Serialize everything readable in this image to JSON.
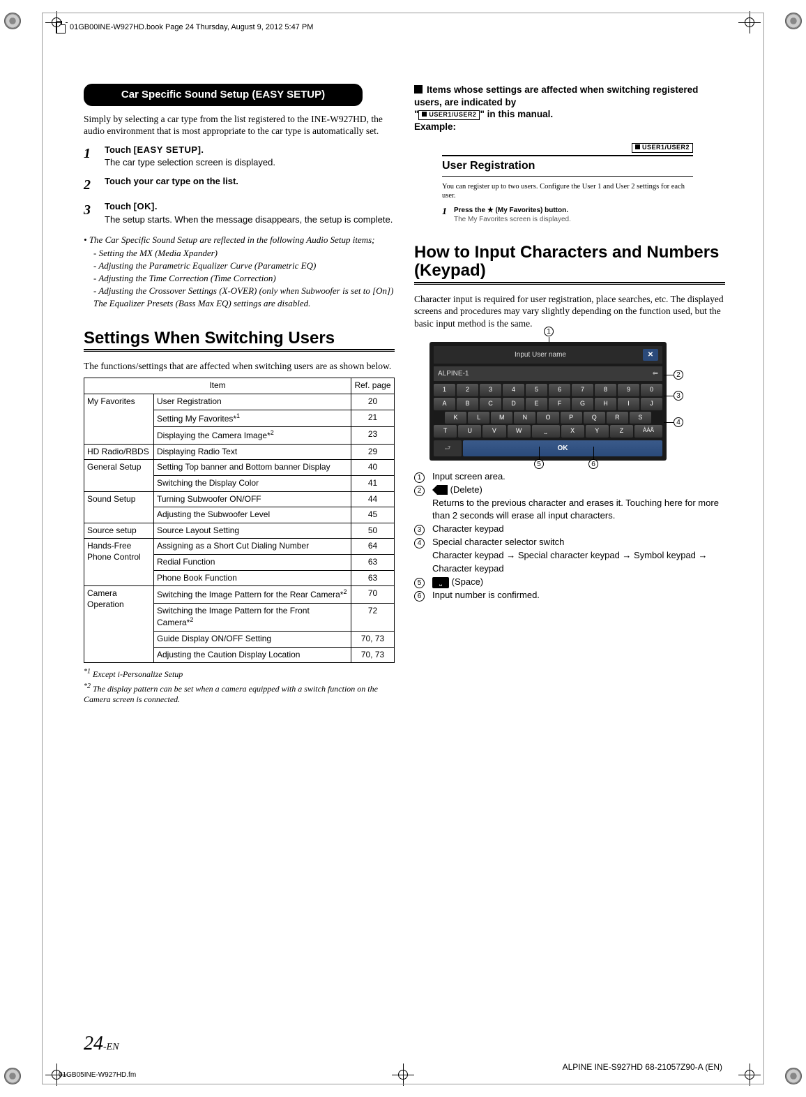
{
  "header": {
    "book_info": "01GB00INE-W927HD.book  Page 24  Thursday, August 9, 2012  5:47 PM"
  },
  "left": {
    "pill": "Car Specific Sound Setup (EASY SETUP)",
    "intro": "Simply by selecting a car type from the list registered to the INE-W927HD, the audio environment that is most appropriate to the car type is automatically set.",
    "step1_a": "Touch ",
    "step1_b": "[EASY SETUP]",
    "step1_c": ".",
    "step1_sub": "The car type selection screen is displayed.",
    "step2": "Touch your car type on the list.",
    "step3_a": "Touch ",
    "step3_b": "[OK]",
    "step3_c": ".",
    "step3_sub": "The setup starts. When the message disappears, the setup is complete.",
    "note_lead": "The Car Specific Sound Setup are reflected in the following Audio Setup items;",
    "note_items": [
      "Setting the MX (Media Xpander)",
      "Adjusting the Parametric Equalizer Curve (Parametric EQ)",
      "Adjusting the Time Correction (Time Correction)",
      "Adjusting the Crossover Settings (X-OVER) (only when Subwoofer is set to [On])"
    ],
    "note_tail": "The Equalizer Presets (Bass Max EQ) settings are disabled.",
    "h2": "Settings When Switching Users",
    "h2_intro": "The functions/settings that are affected when switching users are as shown below.",
    "table": {
      "head": [
        "Item",
        "Ref. page"
      ],
      "rows": [
        {
          "cat": "My Favorites",
          "item": "User Registration",
          "ref": "20",
          "rowspan": 3
        },
        {
          "item": "Setting My Favorites*",
          "sup": "1",
          "ref": "21"
        },
        {
          "item": "Displaying the Camera Image*",
          "sup": "2",
          "ref": "23"
        },
        {
          "cat": "HD Radio/RBDS",
          "item": "Displaying Radio Text",
          "ref": "29",
          "rowspan": 1
        },
        {
          "cat": "General Setup",
          "item": "Setting Top banner and Bottom banner Display",
          "ref": "40",
          "rowspan": 2
        },
        {
          "item": "Switching the Display Color",
          "ref": "41"
        },
        {
          "cat": "Sound Setup",
          "item": "Turning Subwoofer ON/OFF",
          "ref": "44",
          "rowspan": 2
        },
        {
          "item": "Adjusting the Subwoofer Level",
          "ref": "45"
        },
        {
          "cat": "Source setup",
          "item": "Source Layout Setting",
          "ref": "50",
          "rowspan": 1
        },
        {
          "cat": "Hands-Free Phone Control",
          "item": "Assigning as a Short Cut Dialing Number",
          "ref": "64",
          "rowspan": 3
        },
        {
          "item": "Redial Function",
          "ref": "63"
        },
        {
          "item": "Phone Book Function",
          "ref": "63"
        },
        {
          "cat": "Camera Operation",
          "item": "Switching the Image Pattern for the Rear Camera*",
          "sup": "2",
          "ref": "70",
          "rowspan": 4
        },
        {
          "item": "Switching the Image Pattern for the Front Camera*",
          "sup": "2",
          "ref": "72"
        },
        {
          "item": "Guide Display ON/OFF Setting",
          "ref": "70, 73"
        },
        {
          "item": "Adjusting the Caution Display Location",
          "ref": "70, 73"
        }
      ]
    },
    "fn1": "*1 Except i-Personalize Setup",
    "fn2": "*2 The display pattern can be set when a camera equipped with a switch function on the Camera screen is connected."
  },
  "right": {
    "block_lead1": "Items whose settings are affected when switching registered users, are indicated by",
    "block_lead2": "\" in this manual.",
    "badge": "USER1/USER2",
    "example_label": "Example:",
    "ex_title": "User Registration",
    "ex_body": "You can register up to two users. Configure the User 1 and User 2 settings for each user.",
    "ex_step_a": "Press the ",
    "ex_step_b": " (My Favorites) button.",
    "ex_step_sub": "The My Favorites screen is displayed.",
    "h2": "How to Input Characters and Numbers (Keypad)",
    "h2_body": "Character input is required for user registration, place searches, etc. The displayed screens and procedures may vary slightly depending on the function used, but the basic input method is the same.",
    "keypad": {
      "title": "Input User name",
      "value": "ALPINE-1",
      "row1": [
        "1",
        "2",
        "3",
        "4",
        "5",
        "6",
        "7",
        "8",
        "9",
        "0"
      ],
      "row2": [
        "A",
        "B",
        "C",
        "D",
        "E",
        "F",
        "G",
        "H",
        "I",
        "J"
      ],
      "row3": [
        "K",
        "L",
        "M",
        "N",
        "O",
        "P",
        "Q",
        "R",
        "S"
      ],
      "row4": [
        "T",
        "U",
        "V",
        "W",
        "",
        "X",
        "Y",
        "Z",
        "ÀÁÂ"
      ],
      "ok": "OK"
    },
    "legend": [
      {
        "n": "1",
        "t": "Input screen area."
      },
      {
        "n": "2",
        "t_pre": "",
        "t_icon": "delete",
        "t": " (Delete)",
        "sub": "Returns to the previous character and erases it. Touching here for more than 2 seconds will erase all input characters."
      },
      {
        "n": "3",
        "t": "Character keypad"
      },
      {
        "n": "4",
        "t": "Special character selector switch",
        "sub": "Character keypad → Special character keypad → Symbol keypad → Character keypad"
      },
      {
        "n": "5",
        "t_icon": "space",
        "t": " (Space)"
      },
      {
        "n": "6",
        "t": "Input number is confirmed."
      }
    ]
  },
  "footer": {
    "page": "24",
    "page_suf": "-EN",
    "left": "01GB05INE-W927HD.fm",
    "right": "ALPINE INE-S927HD 68-21057Z90-A (EN)"
  }
}
